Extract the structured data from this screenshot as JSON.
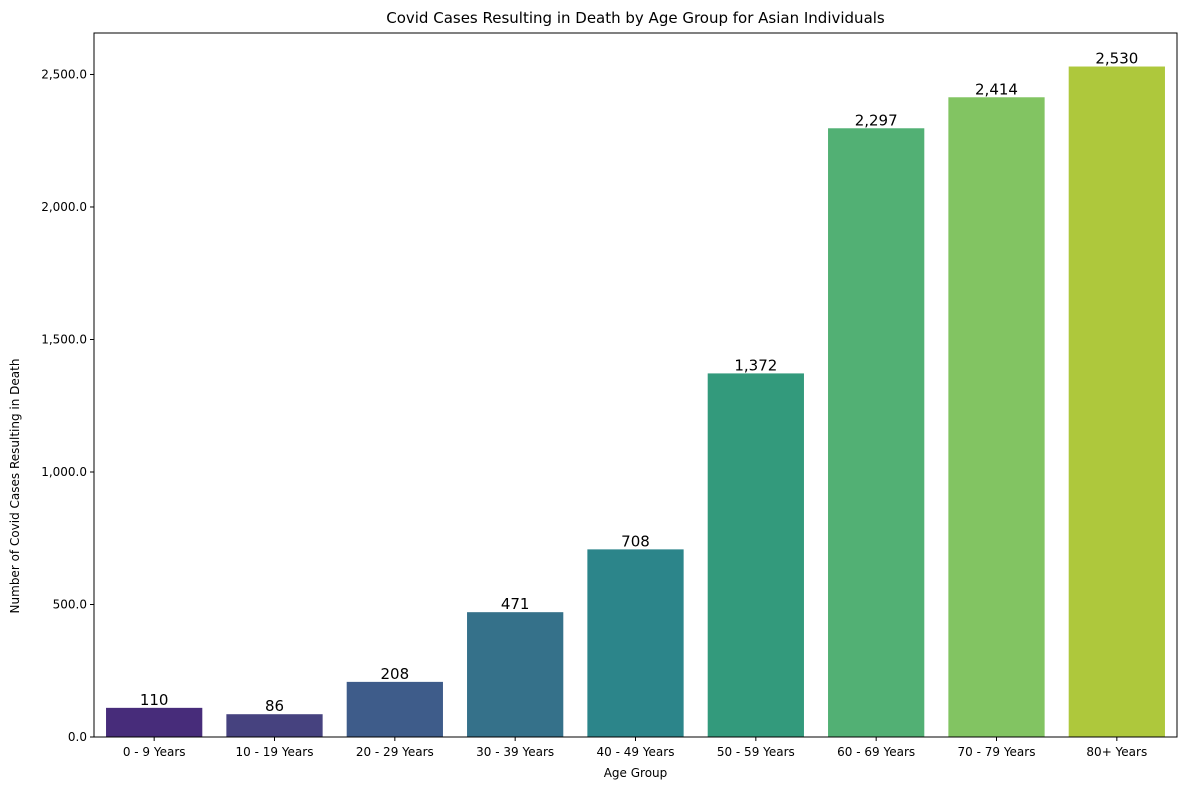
{
  "chart_data": {
    "type": "bar",
    "title": "Covid Cases Resulting in Death by Age Group for Asian Individuals",
    "xlabel": "Age Group",
    "ylabel": "Number of Covid Cases Resulting in Death",
    "categories": [
      "0 - 9 Years",
      "10 - 19 Years",
      "20 - 29 Years",
      "30 - 39 Years",
      "40 - 49 Years",
      "50 - 59 Years",
      "60 - 69 Years",
      "70 - 79 Years",
      "80+ Years"
    ],
    "values": [
      110,
      86,
      208,
      471,
      708,
      1372,
      2297,
      2414,
      2530
    ],
    "value_labels": [
      "110",
      "86",
      "208",
      "471",
      "708",
      "1,372",
      "2,297",
      "2,414",
      "2,530"
    ],
    "bar_colors": [
      "#472c7a",
      "#46427f",
      "#3e5c8a",
      "#35718a",
      "#2c858a",
      "#339a7c",
      "#52b074",
      "#82c462",
      "#aec83c"
    ],
    "ylim": [
      0,
      2656.5
    ],
    "yticks": [
      0,
      500,
      1000,
      1500,
      2000,
      2500
    ],
    "ytick_labels": [
      "0.0",
      "500.0",
      "1,000.0",
      "1,500.0",
      "2,000.0",
      "2,500.0"
    ],
    "grid": false,
    "legend": "none"
  }
}
